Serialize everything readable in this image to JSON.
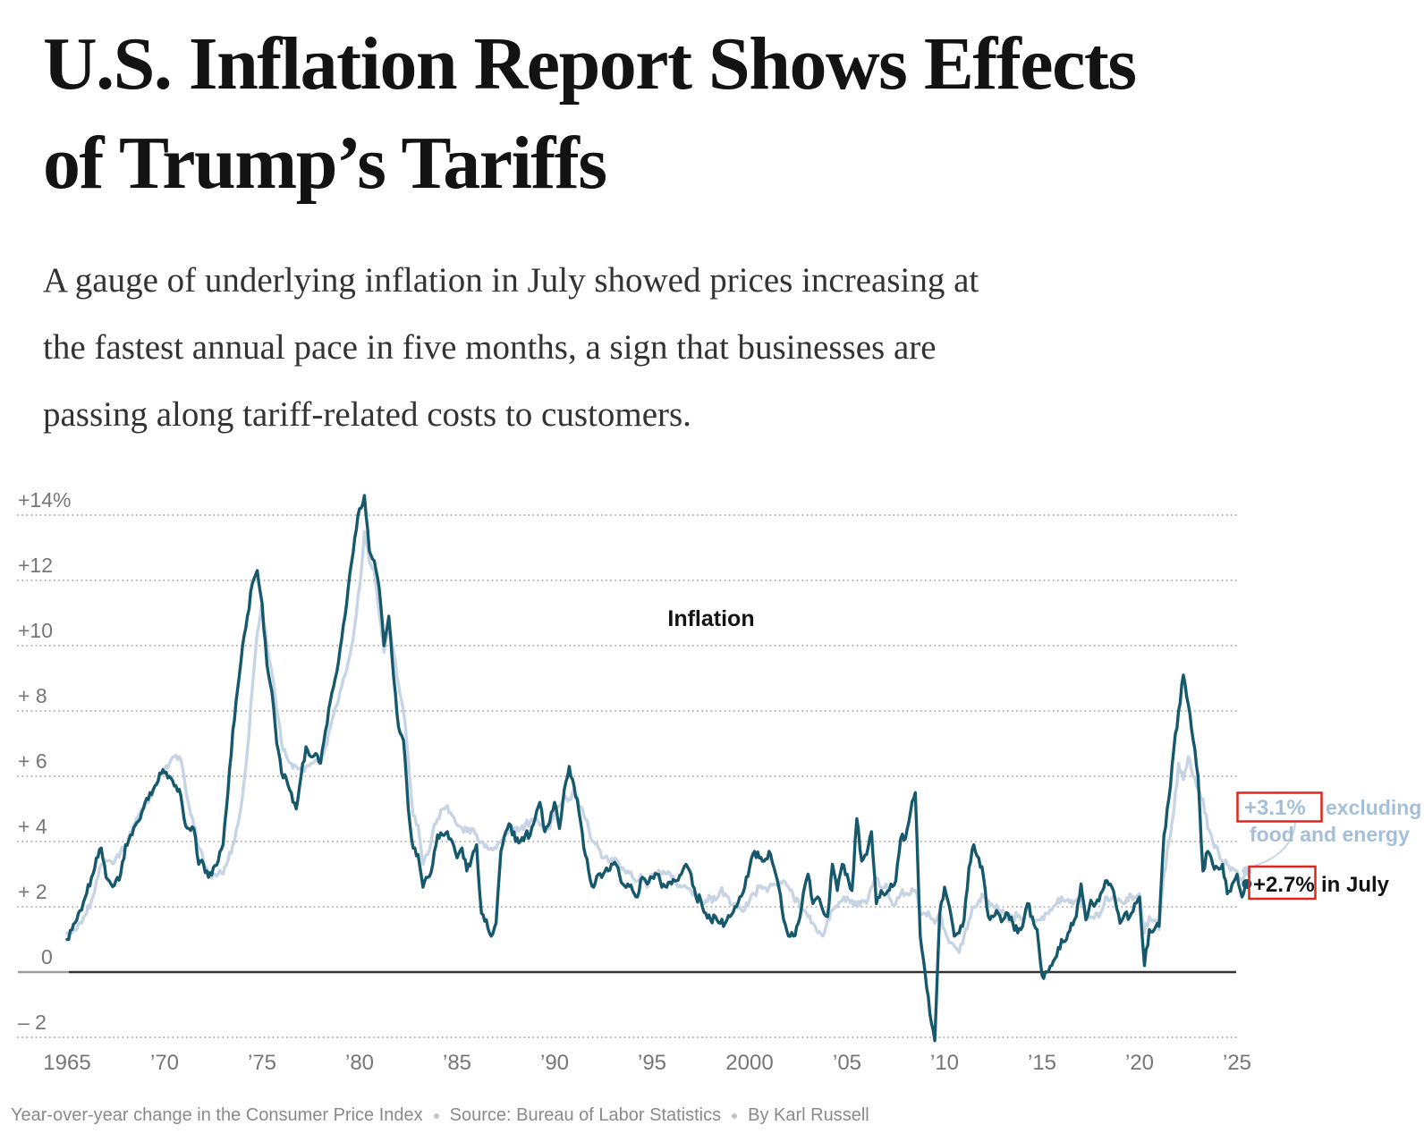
{
  "article": {
    "headline_lines": [
      "U.S. Inflation Report Shows Effects",
      "of Trump’s Tariffs"
    ],
    "dek_lines": [
      "A gauge of underlying inflation in July showed prices increasing at",
      "the fastest annual pace in five months, a sign that businesses are",
      "passing along tariff-related costs to customers."
    ]
  },
  "footer": {
    "note": "Year-over-year change in the Consumer Price Index",
    "source": "Source: Bureau of Labor Statistics",
    "byline": "By Karl Russell"
  },
  "colors": {
    "inflation_line": "#16596d",
    "core_line": "#c7d4e4",
    "core_label_text": "#a6bfd9",
    "callout_box": "#e0251c",
    "axis_text": "#767676",
    "grid": "#b3b3b3",
    "zero_line": "#333333",
    "zero_line_left": "#9a9a9a",
    "headline_text": "#131313",
    "footer_text": "#8a8a8a"
  },
  "chart_data": {
    "type": "line",
    "title": "Year-over-year change in the Consumer Price Index",
    "series_label": "Inflation",
    "x_start_year": 1965,
    "points_per_year": 4,
    "x_end": "July 2025",
    "ylim": [
      -2.9,
      14.8
    ],
    "xlim": [
      1965,
      2025.5
    ],
    "grid": "dotted horizontal",
    "y_ticks": [
      {
        "v": 14,
        "label": "+14%"
      },
      {
        "v": 12,
        "label": "+12"
      },
      {
        "v": 10,
        "label": "+10"
      },
      {
        "v": 8,
        "label": "+ 8"
      },
      {
        "v": 6,
        "label": "+ 6"
      },
      {
        "v": 4,
        "label": "+ 4"
      },
      {
        "v": 2,
        "label": "+ 2"
      },
      {
        "v": 0,
        "label": "0"
      },
      {
        "v": -2,
        "label": "– 2"
      }
    ],
    "x_ticks": [
      {
        "v": 1965,
        "label": "1965"
      },
      {
        "v": 1970,
        "label": "’70"
      },
      {
        "v": 1975,
        "label": "’75"
      },
      {
        "v": 1980,
        "label": "’80"
      },
      {
        "v": 1985,
        "label": "’85"
      },
      {
        "v": 1990,
        "label": "’90"
      },
      {
        "v": 1995,
        "label": "’95"
      },
      {
        "v": 2000,
        "label": "2000"
      },
      {
        "v": 2005,
        "label": "’05"
      },
      {
        "v": 2010,
        "label": "’10"
      },
      {
        "v": 2015,
        "label": "’15"
      },
      {
        "v": 2020,
        "label": "’20"
      },
      {
        "v": 2025,
        "label": "’25"
      }
    ],
    "series": [
      {
        "name": "Inflation",
        "end_value": 2.7,
        "values": [
          1.0,
          1.3,
          1.6,
          1.9,
          2.4,
          2.9,
          3.5,
          3.8,
          2.9,
          2.7,
          2.8,
          3.0,
          3.9,
          4.2,
          4.5,
          4.7,
          5.2,
          5.5,
          5.7,
          6.1,
          6.1,
          6.0,
          5.7,
          5.6,
          4.7,
          4.4,
          4.4,
          3.3,
          3.3,
          2.9,
          3.2,
          3.4,
          3.9,
          5.5,
          7.4,
          8.7,
          10.0,
          10.9,
          11.9,
          12.3,
          11.3,
          9.4,
          8.6,
          7.0,
          6.1,
          5.9,
          5.5,
          5.0,
          6.0,
          6.9,
          6.6,
          6.7,
          6.4,
          7.4,
          8.3,
          9.0,
          9.9,
          10.9,
          12.2,
          13.3,
          14.2,
          14.6,
          12.9,
          12.6,
          11.8,
          10.0,
          10.9,
          9.0,
          7.5,
          7.1,
          5.0,
          3.8,
          3.6,
          2.6,
          2.9,
          3.3,
          4.2,
          4.2,
          4.3,
          4.0,
          3.5,
          3.8,
          3.1,
          3.5,
          3.9,
          1.8,
          1.6,
          1.1,
          1.5,
          3.7,
          4.3,
          4.5,
          4.0,
          4.0,
          4.2,
          4.2,
          4.7,
          5.2,
          4.3,
          4.6,
          5.2,
          4.4,
          5.6,
          6.3,
          5.7,
          4.9,
          3.8,
          3.1,
          2.6,
          3.0,
          3.0,
          3.1,
          3.3,
          3.2,
          2.7,
          2.7,
          2.5,
          2.3,
          2.9,
          2.7,
          2.9,
          3.0,
          2.6,
          2.6,
          2.7,
          2.8,
          3.0,
          3.3,
          3.0,
          2.3,
          2.2,
          1.8,
          1.6,
          1.7,
          1.5,
          1.5,
          1.7,
          2.0,
          2.3,
          2.6,
          3.2,
          3.7,
          3.5,
          3.4,
          3.7,
          3.2,
          2.6,
          1.6,
          1.1,
          1.1,
          1.5,
          2.4,
          3.0,
          2.1,
          2.3,
          1.9,
          1.7,
          3.3,
          2.5,
          3.3,
          3.0,
          2.5,
          4.7,
          3.4,
          3.6,
          4.3,
          2.1,
          2.5,
          2.4,
          2.7,
          2.8,
          4.1,
          4.1,
          4.9,
          5.5,
          1.1,
          0.0,
          -1.3,
          -2.1,
          1.8,
          2.6,
          2.0,
          1.1,
          1.2,
          1.6,
          3.2,
          3.9,
          3.5,
          2.9,
          1.7,
          1.7,
          1.8,
          1.6,
          1.8,
          1.5,
          1.2,
          1.4,
          2.1,
          1.7,
          1.3,
          -0.1,
          0.0,
          0.2,
          0.5,
          1.0,
          1.0,
          1.5,
          1.7,
          2.7,
          1.6,
          2.2,
          2.1,
          2.4,
          2.8,
          2.7,
          2.2,
          1.5,
          1.8,
          1.7,
          2.1,
          2.3,
          0.2,
          1.3,
          1.3,
          1.4,
          4.2,
          5.3,
          6.8,
          8.0,
          9.1,
          8.2,
          7.1,
          6.0,
          3.1,
          3.7,
          3.3,
          3.2,
          3.3,
          2.4,
          2.7,
          3.0,
          2.3,
          2.7
        ]
      },
      {
        "name": "Excluding food and energy",
        "end_value": 3.1,
        "values": [
          1.2,
          1.2,
          1.3,
          1.5,
          1.8,
          2.2,
          2.8,
          3.3,
          3.4,
          3.4,
          3.5,
          3.7,
          3.9,
          4.3,
          4.6,
          4.9,
          5.1,
          5.4,
          5.7,
          6.0,
          6.2,
          6.4,
          6.6,
          6.6,
          6.0,
          5.1,
          4.5,
          3.8,
          3.4,
          3.0,
          3.0,
          3.0,
          3.0,
          3.4,
          3.9,
          4.5,
          5.4,
          6.8,
          8.7,
          10.4,
          11.3,
          10.0,
          9.2,
          8.0,
          7.0,
          6.6,
          6.4,
          6.3,
          6.2,
          6.3,
          6.4,
          6.5,
          6.4,
          6.9,
          7.5,
          8.1,
          8.6,
          9.1,
          9.7,
          10.6,
          11.8,
          13.5,
          12.6,
          12.3,
          11.0,
          9.8,
          10.6,
          9.8,
          8.8,
          8.0,
          6.5,
          4.8,
          4.5,
          3.3,
          3.6,
          4.3,
          4.7,
          5.0,
          5.1,
          4.8,
          4.5,
          4.4,
          4.3,
          4.4,
          4.2,
          4.0,
          3.9,
          3.8,
          3.8,
          4.0,
          4.2,
          4.3,
          4.3,
          4.4,
          4.5,
          4.6,
          4.7,
          4.5,
          4.4,
          4.4,
          4.9,
          5.1,
          5.4,
          5.3,
          5.6,
          5.1,
          4.8,
          4.4,
          4.0,
          3.8,
          3.5,
          3.4,
          3.4,
          3.4,
          3.2,
          3.1,
          2.9,
          2.8,
          2.9,
          2.6,
          3.0,
          3.0,
          3.0,
          3.0,
          2.9,
          2.7,
          2.6,
          2.6,
          2.5,
          2.4,
          2.2,
          2.2,
          2.3,
          2.2,
          2.5,
          2.4,
          2.1,
          2.1,
          2.0,
          1.9,
          2.2,
          2.4,
          2.6,
          2.6,
          2.6,
          2.7,
          2.6,
          2.8,
          2.6,
          2.3,
          2.2,
          1.9,
          1.7,
          1.5,
          1.2,
          1.1,
          1.6,
          1.9,
          2.0,
          2.2,
          2.3,
          2.2,
          2.0,
          2.2,
          2.1,
          2.6,
          2.9,
          2.6,
          2.7,
          2.2,
          2.1,
          2.4,
          2.4,
          2.4,
          2.5,
          1.8,
          1.8,
          1.7,
          1.5,
          1.8,
          1.3,
          0.9,
          0.8,
          0.6,
          1.1,
          1.6,
          2.0,
          2.2,
          2.3,
          2.2,
          2.0,
          1.9,
          1.9,
          1.6,
          1.7,
          1.7,
          1.6,
          1.9,
          1.7,
          1.6,
          1.7,
          1.8,
          1.9,
          2.1,
          2.3,
          2.2,
          2.2,
          2.2,
          2.2,
          1.7,
          1.7,
          1.8,
          1.8,
          2.3,
          2.2,
          2.2,
          2.2,
          2.1,
          2.4,
          2.3,
          2.4,
          1.2,
          1.7,
          1.6,
          1.3,
          3.0,
          4.0,
          4.9,
          6.4,
          5.9,
          6.6,
          6.0,
          5.6,
          5.3,
          4.4,
          4.0,
          3.8,
          3.4,
          3.3,
          3.2,
          3.1,
          2.8,
          3.1
        ]
      }
    ],
    "annotations": {
      "core_callout": {
        "value_label": "+3.1%",
        "suffix_line1": "excluding",
        "suffix_line2": "food and energy"
      },
      "headline_callout": {
        "value_label": "+2.7%",
        "suffix": "in July"
      }
    }
  }
}
